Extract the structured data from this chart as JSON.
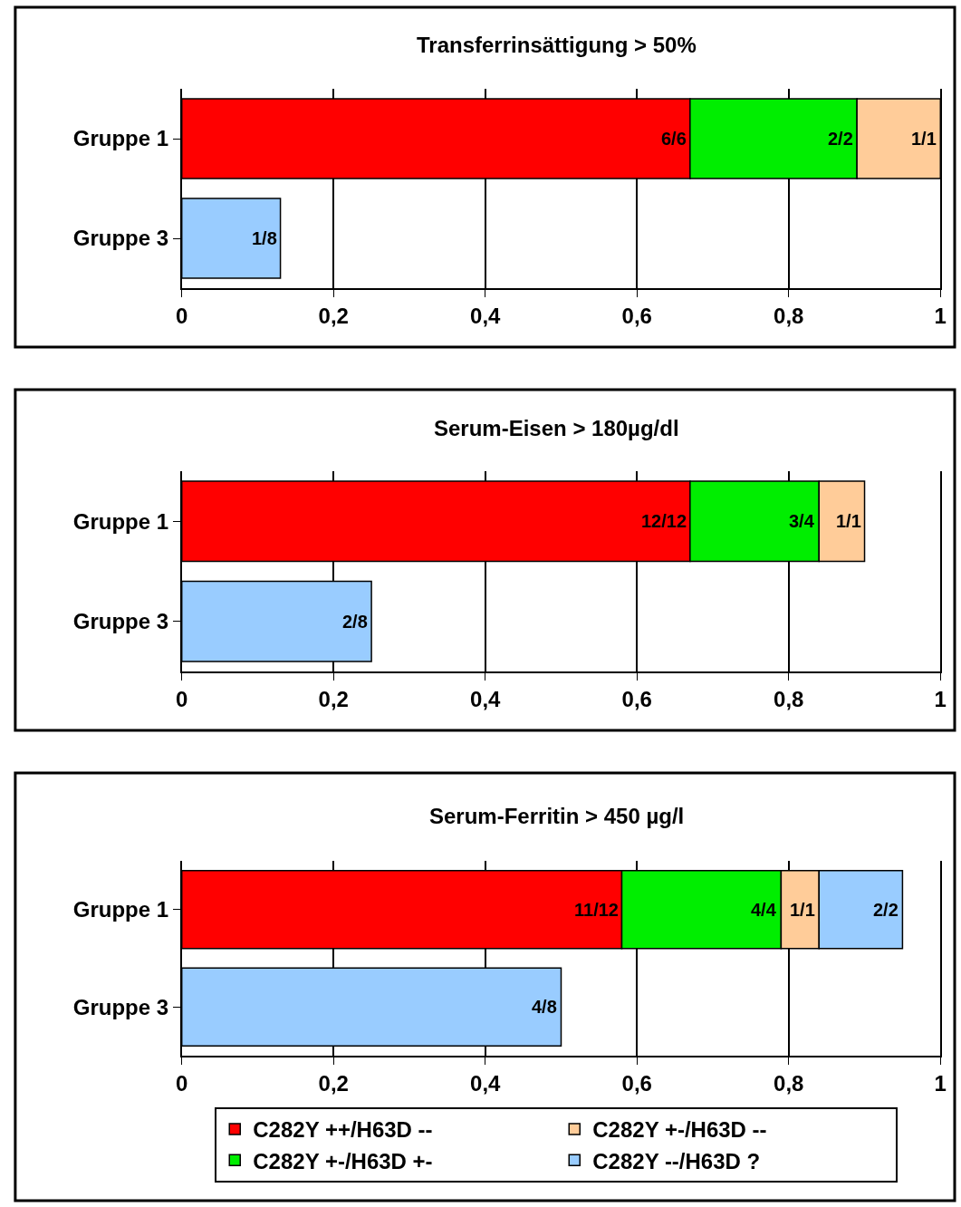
{
  "chart_data": [
    {
      "type": "bar",
      "orientation": "horizontal",
      "stacked": true,
      "title": "Transferrinsättigung > 50%",
      "categories": [
        "Gruppe 1",
        "Gruppe 3"
      ],
      "xlim": [
        0,
        1
      ],
      "xticks": [
        0,
        {
          "value": 0.2,
          "label": "0,2"
        },
        {
          "value": 0.4,
          "label": "0,4"
        },
        {
          "value": 0.6,
          "label": "0,6"
        },
        {
          "value": 0.8,
          "label": "0,8"
        },
        1
      ],
      "grid": "x",
      "series": [
        {
          "color": "#ff0000",
          "values": [
            0.67,
            null
          ]
        },
        {
          "color": "#00ee00",
          "values": [
            0.22,
            null
          ]
        },
        {
          "color": "#ffcc99",
          "values": [
            0.11,
            null
          ]
        },
        {
          "color": "#99ccff",
          "values": [
            null,
            0.13
          ]
        }
      ],
      "annotations": [
        {
          "text": "6/6",
          "x": 0.67,
          "y": "Gruppe 1"
        },
        {
          "text": "2/2",
          "x": 0.89,
          "y": "Gruppe 1"
        },
        {
          "text": "1/1",
          "x": 1.0,
          "y": "Gruppe 1"
        },
        {
          "text": "1/8",
          "x": 0.13,
          "y": "Gruppe 3"
        }
      ]
    },
    {
      "type": "bar",
      "orientation": "horizontal",
      "stacked": true,
      "title": "Serum-Eisen > 180µg/dl",
      "categories": [
        "Gruppe 1",
        "Gruppe 3"
      ],
      "xlim": [
        0,
        1
      ],
      "xticks": [
        0,
        {
          "value": 0.2,
          "label": "0,2"
        },
        {
          "value": 0.4,
          "label": "0,4"
        },
        {
          "value": 0.6,
          "label": "0,6"
        },
        {
          "value": 0.8,
          "label": "0,8"
        },
        1
      ],
      "grid": "x",
      "series": [
        {
          "color": "#ff0000",
          "values": [
            0.67,
            null
          ]
        },
        {
          "color": "#00ee00",
          "values": [
            0.17,
            null
          ]
        },
        {
          "color": "#ffcc99",
          "values": [
            0.06,
            null
          ]
        },
        {
          "color": "#99ccff",
          "values": [
            null,
            0.25
          ]
        }
      ],
      "annotations": [
        {
          "text": "12/12",
          "x": 0.67,
          "y": "Gruppe 1"
        },
        {
          "text": "3/4",
          "x": 0.84,
          "y": "Gruppe 1"
        },
        {
          "text": "1/1",
          "x": 0.9,
          "y": "Gruppe 1"
        },
        {
          "text": "2/8",
          "x": 0.25,
          "y": "Gruppe 3"
        }
      ]
    },
    {
      "type": "bar",
      "orientation": "horizontal",
      "stacked": true,
      "title": "Serum-Ferritin > 450 µg/l",
      "categories": [
        "Gruppe 1",
        "Gruppe 3"
      ],
      "xlim": [
        0,
        1
      ],
      "xticks": [
        0,
        {
          "value": 0.2,
          "label": "0,2"
        },
        {
          "value": 0.4,
          "label": "0,4"
        },
        {
          "value": 0.6,
          "label": "0,6"
        },
        {
          "value": 0.8,
          "label": "0,8"
        },
        1
      ],
      "grid": "x",
      "legend": "bottom",
      "series": [
        {
          "name": "C282Y ++/H63D --",
          "color": "#ff0000",
          "values": [
            0.58,
            null
          ]
        },
        {
          "name": "C282Y +-/H63D +-",
          "color": "#00ee00",
          "values": [
            0.21,
            null
          ]
        },
        {
          "name": "C282Y +-/H63D --",
          "color": "#ffcc99",
          "values": [
            0.05,
            null
          ]
        },
        {
          "name": "C282Y --/H63D ?",
          "color": "#99ccff",
          "values": [
            0.11,
            0.5
          ]
        }
      ],
      "annotations": [
        {
          "text": "11/12",
          "x": 0.58,
          "y": "Gruppe 1"
        },
        {
          "text": "4/4",
          "x": 0.79,
          "y": "Gruppe 1"
        },
        {
          "text": "1/1",
          "x": 0.84,
          "y": "Gruppe 1"
        },
        {
          "text": "2/2",
          "x": 0.95,
          "y": "Gruppe 1"
        },
        {
          "text": "4/8",
          "x": 0.5,
          "y": "Gruppe 3"
        }
      ]
    }
  ]
}
